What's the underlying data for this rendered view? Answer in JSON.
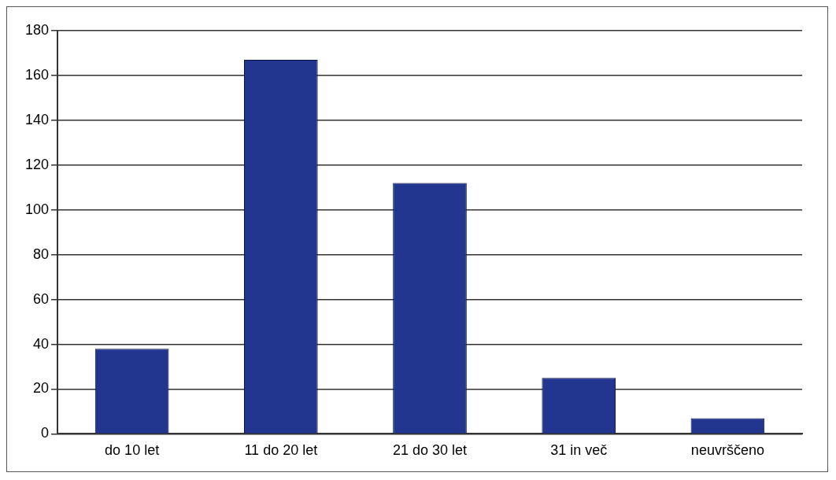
{
  "chart_data": {
    "type": "bar",
    "categories": [
      "do 10 let",
      "11 do 20 let",
      "21 do 30 let",
      "31 in več",
      "neuvrščeno"
    ],
    "values": [
      38,
      167,
      112,
      25,
      7
    ],
    "color": "#22368f",
    "ylim": [
      0,
      180
    ],
    "yticks": [
      0,
      20,
      40,
      60,
      80,
      100,
      120,
      140,
      160,
      180
    ],
    "grid": "y",
    "legend": false
  }
}
